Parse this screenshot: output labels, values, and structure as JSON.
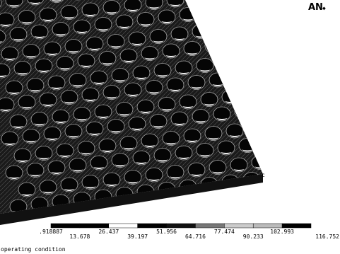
{
  "logo": "AN",
  "legend": {
    "labels": [
      ".918887",
      "13.678",
      "26.437",
      "39.197",
      "51.956",
      "64.716",
      "77.474",
      "90.233",
      "102.993",
      "116.752"
    ]
  },
  "caption": "operating condition"
}
